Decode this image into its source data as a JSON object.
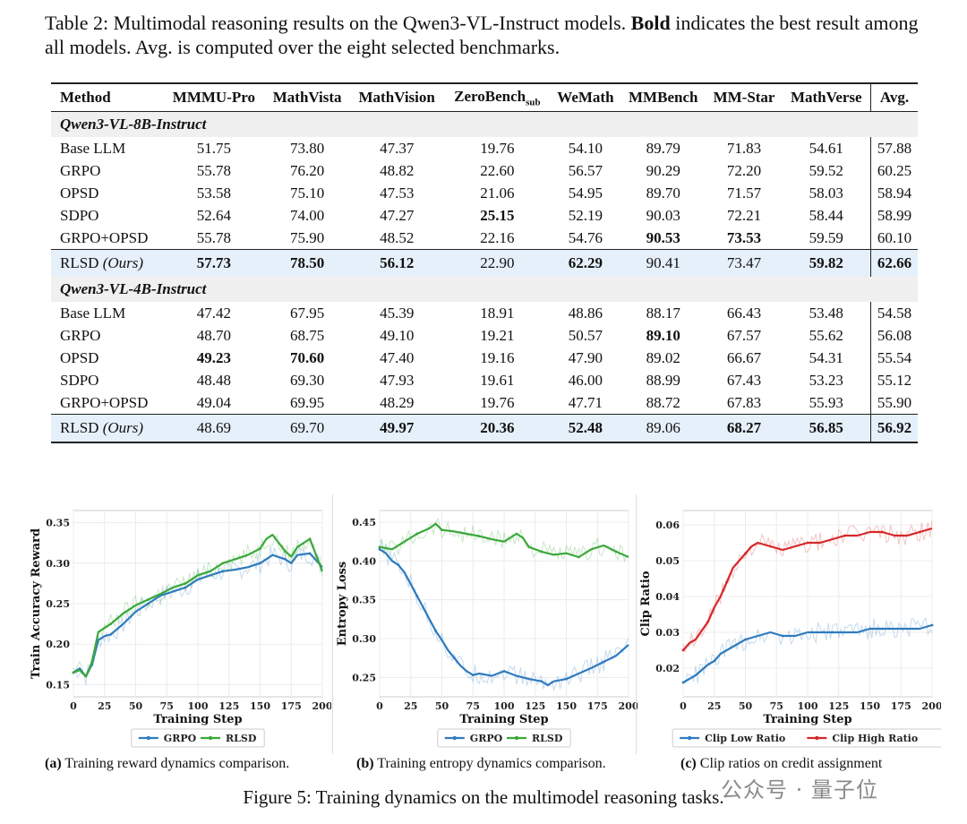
{
  "caption": {
    "prefix": "Table 2: Multimodal reasoning results on the Qwen3-VL-Instruct models. ",
    "bold": "Bold",
    "suffix": " indicates the best result among all models. Avg. is computed over the eight selected benchmarks."
  },
  "table": {
    "headers": [
      "Method",
      "MMMU-Pro",
      "MathVista",
      "MathVision",
      "ZeroBench",
      "WeMath",
      "MMBench",
      "MM-Star",
      "MathVerse",
      "Avg."
    ],
    "zerobench_sub": "sub",
    "groups": [
      {
        "title": "Qwen3-VL-8B-Instruct",
        "rows": [
          {
            "method": "Base LLM",
            "values": [
              "51.75",
              "73.80",
              "47.37",
              "19.76",
              "54.10",
              "89.79",
              "71.83",
              "54.61",
              "57.88"
            ],
            "bold": []
          },
          {
            "method": "GRPO",
            "values": [
              "55.78",
              "76.20",
              "48.82",
              "22.60",
              "56.57",
              "90.29",
              "72.20",
              "59.52",
              "60.25"
            ],
            "bold": []
          },
          {
            "method": "OPSD",
            "values": [
              "53.58",
              "75.10",
              "47.53",
              "21.06",
              "54.95",
              "89.70",
              "71.57",
              "58.03",
              "58.94"
            ],
            "bold": []
          },
          {
            "method": "SDPO",
            "values": [
              "52.64",
              "74.00",
              "47.27",
              "25.15",
              "52.19",
              "90.03",
              "72.21",
              "58.44",
              "58.99"
            ],
            "bold": [
              3
            ]
          },
          {
            "method": "GRPO+OPSD",
            "values": [
              "55.78",
              "75.90",
              "48.52",
              "22.16",
              "54.76",
              "90.53",
              "73.53",
              "59.59",
              "60.10"
            ],
            "bold": [
              5,
              6
            ]
          }
        ],
        "ours": {
          "method": "RLSD",
          "tag": "(Ours)",
          "values": [
            "57.73",
            "78.50",
            "56.12",
            "22.90",
            "62.29",
            "90.41",
            "73.47",
            "59.82",
            "62.66"
          ],
          "bold": [
            0,
            1,
            2,
            4,
            7,
            8
          ]
        }
      },
      {
        "title": "Qwen3-VL-4B-Instruct",
        "rows": [
          {
            "method": "Base LLM",
            "values": [
              "47.42",
              "67.95",
              "45.39",
              "18.91",
              "48.86",
              "88.17",
              "66.43",
              "53.48",
              "54.58"
            ],
            "bold": []
          },
          {
            "method": "GRPO",
            "values": [
              "48.70",
              "68.75",
              "49.10",
              "19.21",
              "50.57",
              "89.10",
              "67.57",
              "55.62",
              "56.08"
            ],
            "bold": [
              5
            ]
          },
          {
            "method": "OPSD",
            "values": [
              "49.23",
              "70.60",
              "47.40",
              "19.16",
              "47.90",
              "89.02",
              "66.67",
              "54.31",
              "55.54"
            ],
            "bold": [
              0,
              1
            ]
          },
          {
            "method": "SDPO",
            "values": [
              "48.48",
              "69.30",
              "47.93",
              "19.61",
              "46.00",
              "88.99",
              "67.43",
              "53.23",
              "55.12"
            ],
            "bold": []
          },
          {
            "method": "GRPO+OPSD",
            "values": [
              "49.04",
              "69.95",
              "48.29",
              "19.76",
              "47.71",
              "88.72",
              "67.83",
              "55.93",
              "55.90"
            ],
            "bold": []
          }
        ],
        "ours": {
          "method": "RLSD",
          "tag": "(Ours)",
          "values": [
            "48.69",
            "69.70",
            "49.97",
            "20.36",
            "52.48",
            "89.06",
            "68.27",
            "56.85",
            "56.92"
          ],
          "bold": [
            2,
            3,
            4,
            6,
            7,
            8
          ]
        }
      }
    ]
  },
  "colors": {
    "blue": "#2f7bbf",
    "green": "#3aa83a",
    "red": "#d62728"
  },
  "chart_data": [
    {
      "type": "line",
      "xlabel": "Training Step",
      "ylabel": "Train Accuracy Reward",
      "xlim": [
        0,
        200
      ],
      "ylim": [
        0.135,
        0.365
      ],
      "xticks": [
        0,
        25,
        50,
        75,
        100,
        125,
        150,
        175,
        200
      ],
      "yticks": [
        0.15,
        0.2,
        0.25,
        0.3,
        0.35
      ],
      "ytick_labels": [
        "0.15",
        "0.20",
        "0.25",
        "0.30",
        "0.35"
      ],
      "legend_position": "bottom",
      "series": [
        {
          "name": "GRPO",
          "color": "#2f7bbf",
          "x": [
            0,
            5,
            10,
            15,
            20,
            25,
            30,
            40,
            50,
            60,
            70,
            80,
            90,
            100,
            110,
            120,
            130,
            140,
            150,
            155,
            160,
            170,
            175,
            180,
            190,
            200
          ],
          "y": [
            0.165,
            0.17,
            0.16,
            0.175,
            0.205,
            0.21,
            0.212,
            0.225,
            0.24,
            0.25,
            0.26,
            0.265,
            0.27,
            0.28,
            0.285,
            0.29,
            0.292,
            0.295,
            0.3,
            0.305,
            0.31,
            0.305,
            0.3,
            0.31,
            0.312,
            0.295
          ]
        },
        {
          "name": "RLSD",
          "color": "#3aa83a",
          "x": [
            0,
            5,
            10,
            15,
            20,
            25,
            30,
            40,
            50,
            60,
            70,
            80,
            90,
            100,
            110,
            120,
            130,
            140,
            150,
            155,
            160,
            170,
            175,
            180,
            190,
            200
          ],
          "y": [
            0.165,
            0.168,
            0.16,
            0.178,
            0.215,
            0.22,
            0.225,
            0.238,
            0.248,
            0.255,
            0.262,
            0.27,
            0.275,
            0.285,
            0.29,
            0.3,
            0.305,
            0.31,
            0.318,
            0.33,
            0.335,
            0.315,
            0.308,
            0.32,
            0.33,
            0.29
          ]
        }
      ],
      "caption_label": "(a)",
      "caption": " Training reward dynamics comparison."
    },
    {
      "type": "line",
      "xlabel": "Training Step",
      "ylabel": "Entropy Loss",
      "xlim": [
        0,
        200
      ],
      "ylim": [
        0.225,
        0.465
      ],
      "xticks": [
        0,
        25,
        50,
        75,
        100,
        125,
        150,
        175,
        200
      ],
      "yticks": [
        0.25,
        0.3,
        0.35,
        0.4,
        0.45
      ],
      "ytick_labels": [
        "0.25",
        "0.30",
        "0.35",
        "0.40",
        "0.45"
      ],
      "legend_position": "bottom",
      "series": [
        {
          "name": "GRPO",
          "color": "#2f7bbf",
          "x": [
            0,
            5,
            10,
            15,
            20,
            25,
            30,
            35,
            40,
            45,
            50,
            55,
            60,
            65,
            70,
            75,
            80,
            90,
            100,
            110,
            120,
            130,
            135,
            140,
            150,
            160,
            170,
            180,
            190,
            200
          ],
          "y": [
            0.415,
            0.41,
            0.4,
            0.395,
            0.385,
            0.37,
            0.355,
            0.34,
            0.325,
            0.31,
            0.298,
            0.285,
            0.275,
            0.265,
            0.258,
            0.253,
            0.255,
            0.252,
            0.258,
            0.252,
            0.248,
            0.245,
            0.24,
            0.245,
            0.248,
            0.255,
            0.262,
            0.27,
            0.278,
            0.292
          ]
        },
        {
          "name": "RLSD",
          "color": "#3aa83a",
          "x": [
            0,
            10,
            20,
            30,
            40,
            45,
            50,
            60,
            70,
            80,
            90,
            100,
            110,
            115,
            120,
            130,
            140,
            150,
            160,
            170,
            180,
            190,
            200
          ],
          "y": [
            0.418,
            0.415,
            0.425,
            0.435,
            0.442,
            0.448,
            0.44,
            0.438,
            0.435,
            0.432,
            0.428,
            0.425,
            0.435,
            0.43,
            0.418,
            0.412,
            0.408,
            0.41,
            0.405,
            0.415,
            0.42,
            0.412,
            0.405
          ]
        }
      ],
      "caption_label": "(b)",
      "caption": " Training entropy dynamics comparison."
    },
    {
      "type": "line",
      "xlabel": "Training Step",
      "ylabel": "Clip Ratio",
      "xlim": [
        0,
        200
      ],
      "ylim": [
        0.012,
        0.064
      ],
      "xticks": [
        0,
        25,
        50,
        75,
        100,
        125,
        150,
        175,
        200
      ],
      "yticks": [
        0.02,
        0.03,
        0.04,
        0.05,
        0.06
      ],
      "ytick_labels": [
        "0.02",
        "0.03",
        "0.04",
        "0.05",
        "0.06"
      ],
      "legend_position": "bottom",
      "series": [
        {
          "name": "Clip Low Ratio",
          "color": "#2f7bbf",
          "x": [
            0,
            10,
            20,
            25,
            30,
            40,
            50,
            60,
            70,
            80,
            90,
            100,
            120,
            140,
            150,
            160,
            180,
            190,
            200
          ],
          "y": [
            0.016,
            0.018,
            0.021,
            0.022,
            0.024,
            0.026,
            0.028,
            0.029,
            0.03,
            0.029,
            0.029,
            0.03,
            0.03,
            0.03,
            0.031,
            0.031,
            0.031,
            0.031,
            0.032
          ]
        },
        {
          "name": "Clip High Ratio",
          "color": "#d62728",
          "x": [
            0,
            5,
            10,
            20,
            25,
            30,
            35,
            40,
            45,
            50,
            55,
            60,
            70,
            80,
            90,
            100,
            110,
            120,
            130,
            140,
            150,
            160,
            170,
            180,
            190,
            200
          ],
          "y": [
            0.025,
            0.027,
            0.028,
            0.033,
            0.037,
            0.04,
            0.044,
            0.048,
            0.05,
            0.052,
            0.054,
            0.055,
            0.054,
            0.053,
            0.054,
            0.055,
            0.055,
            0.056,
            0.057,
            0.057,
            0.058,
            0.058,
            0.057,
            0.057,
            0.058,
            0.059
          ]
        }
      ],
      "caption_label": "(c)",
      "caption": " Clip ratios on credit assignment"
    }
  ],
  "figure_caption": "Figure 5: Training dynamics on the multimodel reasoning tasks.",
  "watermark": "公众号 · 量子位"
}
